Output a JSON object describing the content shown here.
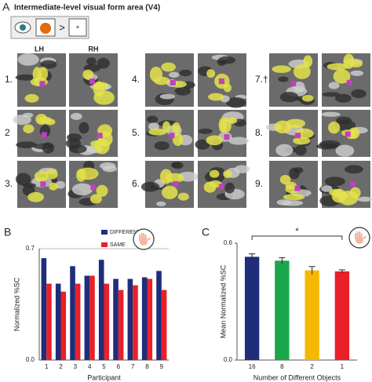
{
  "panel_a": {
    "panel_label": "A",
    "title": "Intermediate-level visual form area (V4)",
    "icon": {
      "operator": ">",
      "baseline": "+"
    },
    "hemispheres": [
      "LH",
      "RH"
    ],
    "participants": [
      "1.",
      "2",
      "3.",
      "4.",
      "5.",
      "6.",
      "7.†",
      "8.",
      "9."
    ]
  },
  "chart_data": [
    {
      "type": "bar",
      "panel_label": "B",
      "y_label": "Normalized %SC",
      "x_label": "Participant",
      "categories": [
        "1",
        "2",
        "3",
        "4",
        "5",
        "6",
        "7",
        "8",
        "9"
      ],
      "series": [
        {
          "name": "DIFFERENT",
          "color": "#1f2d7a",
          "values": [
            0.64,
            0.48,
            0.59,
            0.53,
            0.63,
            0.51,
            0.51,
            0.52,
            0.56
          ]
        },
        {
          "name": "SAME",
          "color": "#e8202a",
          "values": [
            0.48,
            0.43,
            0.48,
            0.53,
            0.48,
            0.44,
            0.47,
            0.51,
            0.44
          ]
        }
      ],
      "ylim": [
        0,
        0.7
      ],
      "yticks": [
        {
          "value": 0,
          "label": "0.0"
        },
        0.7
      ],
      "grid": true,
      "legend": "top-right"
    },
    {
      "type": "bar",
      "panel_label": "C",
      "y_label": "Mean Normalized %SC",
      "x_label": "Number of Different Objects",
      "categories": [
        "16",
        "8",
        "2",
        "1"
      ],
      "values": [
        0.53,
        0.51,
        0.46,
        0.455
      ],
      "errors": [
        0.015,
        0.015,
        0.02,
        0.008
      ],
      "colors": [
        "#1f2d7a",
        "#1aa64a",
        "#f5b800",
        "#e8202a"
      ],
      "annotation": "*",
      "ylim": [
        0,
        0.6
      ],
      "yticks": [
        {
          "value": 0,
          "label": "0.0"
        },
        0.6
      ],
      "grid": false
    }
  ]
}
